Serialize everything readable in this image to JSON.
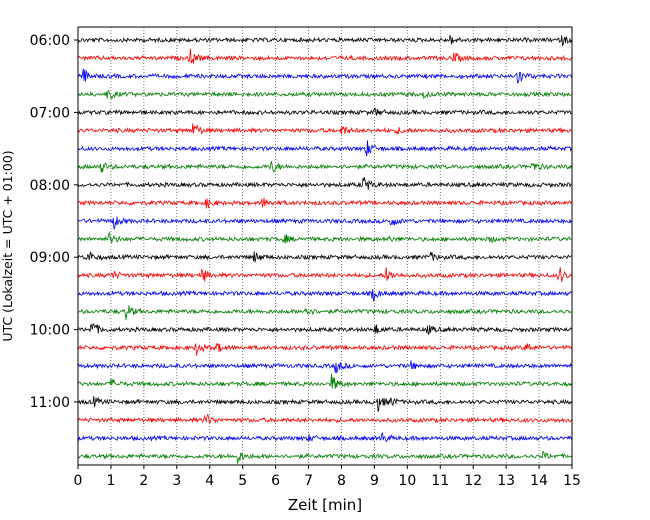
{
  "chart_data": {
    "type": "line",
    "xlabel": "Zeit  [min]",
    "ylabel": "UTC (Lokalzeit = UTC + 01:00)",
    "xlim": [
      0,
      15
    ],
    "x_ticks": [
      "0",
      "1",
      "2",
      "3",
      "4",
      "5",
      "6",
      "7",
      "8",
      "9",
      "10",
      "11",
      "12",
      "13",
      "14",
      "15"
    ],
    "hour_labels": [
      "06:00",
      "07:00",
      "08:00",
      "09:00",
      "10:00",
      "11:00"
    ],
    "grid": "vertical dotted",
    "series_colors": [
      "#000000",
      "#ff0000",
      "#0000ff",
      "#008000"
    ],
    "trace_count": 24,
    "traces": [
      {
        "time": "06:00",
        "color": "#000000",
        "events": [
          [
            11.3,
            0.5
          ],
          [
            14.7,
            0.5
          ]
        ]
      },
      {
        "time": "06:15",
        "color": "#ff0000",
        "events": [
          [
            3.4,
            1.0
          ],
          [
            11.4,
            0.6
          ],
          [
            14.95,
            0.8
          ]
        ]
      },
      {
        "time": "06:30",
        "color": "#0000ff",
        "events": [
          [
            0.15,
            0.8
          ],
          [
            13.3,
            1.2
          ]
        ]
      },
      {
        "time": "06:45",
        "color": "#008000",
        "events": [
          [
            0.9,
            0.7
          ],
          [
            10.5,
            0.3
          ]
        ]
      },
      {
        "time": "07:00",
        "color": "#000000",
        "events": [
          [
            9.0,
            0.4
          ]
        ]
      },
      {
        "time": "07:15",
        "color": "#ff0000",
        "events": [
          [
            3.5,
            1.1
          ],
          [
            8.0,
            0.6
          ],
          [
            9.7,
            0.3
          ]
        ]
      },
      {
        "time": "07:30",
        "color": "#0000ff",
        "events": [
          [
            8.75,
            1.0
          ]
        ]
      },
      {
        "time": "07:45",
        "color": "#008000",
        "events": [
          [
            0.7,
            0.6
          ],
          [
            5.85,
            0.8
          ],
          [
            13.8,
            0.6
          ]
        ]
      },
      {
        "time": "08:00",
        "color": "#000000",
        "events": [
          [
            8.65,
            1.2
          ]
        ]
      },
      {
        "time": "08:15",
        "color": "#ff0000",
        "events": [
          [
            3.9,
            0.6
          ],
          [
            5.6,
            0.6
          ]
        ]
      },
      {
        "time": "08:30",
        "color": "#0000ff",
        "events": [
          [
            1.05,
            1.0
          ],
          [
            9.5,
            0.6
          ]
        ]
      },
      {
        "time": "08:45",
        "color": "#008000",
        "events": [
          [
            0.95,
            0.7
          ],
          [
            6.25,
            0.5
          ],
          [
            9.35,
            0.4
          ],
          [
            12.5,
            0.3
          ]
        ]
      },
      {
        "time": "09:00",
        "color": "#000000",
        "events": [
          [
            0.25,
            0.9
          ],
          [
            5.35,
            0.6
          ],
          [
            10.7,
            0.5
          ]
        ]
      },
      {
        "time": "09:15",
        "color": "#ff0000",
        "events": [
          [
            1.05,
            0.5
          ],
          [
            3.75,
            0.9
          ],
          [
            9.35,
            0.8
          ],
          [
            14.6,
            1.1
          ]
        ]
      },
      {
        "time": "09:30",
        "color": "#0000ff",
        "events": [
          [
            8.95,
            0.8
          ]
        ]
      },
      {
        "time": "09:45",
        "color": "#008000",
        "events": [
          [
            1.45,
            1.0
          ],
          [
            6.9,
            0.6
          ]
        ]
      },
      {
        "time": "10:00",
        "color": "#000000",
        "events": [
          [
            0.4,
            1.2
          ],
          [
            9.0,
            0.6
          ],
          [
            10.6,
            0.5
          ]
        ]
      },
      {
        "time": "10:15",
        "color": "#ff0000",
        "events": [
          [
            3.6,
            0.9
          ],
          [
            4.2,
            0.6
          ],
          [
            13.6,
            0.5
          ]
        ]
      },
      {
        "time": "10:30",
        "color": "#0000ff",
        "events": [
          [
            7.8,
            0.9
          ],
          [
            10.1,
            0.4
          ]
        ]
      },
      {
        "time": "10:45",
        "color": "#008000",
        "events": [
          [
            1.0,
            0.5
          ],
          [
            7.7,
            1.0
          ]
        ]
      },
      {
        "time": "11:00",
        "color": "#000000",
        "events": [
          [
            0.45,
            0.6
          ],
          [
            9.1,
            1.0
          ],
          [
            9.5,
            0.4
          ]
        ]
      },
      {
        "time": "11:15",
        "color": "#ff0000",
        "events": [
          [
            3.85,
            0.8
          ]
        ]
      },
      {
        "time": "11:30",
        "color": "#0000ff",
        "events": [
          [
            9.2,
            0.7
          ],
          [
            7.0,
            0.3
          ]
        ]
      },
      {
        "time": "11:45",
        "color": "#008000",
        "events": [
          [
            4.85,
            0.7
          ],
          [
            14.1,
            0.4
          ]
        ]
      }
    ]
  }
}
